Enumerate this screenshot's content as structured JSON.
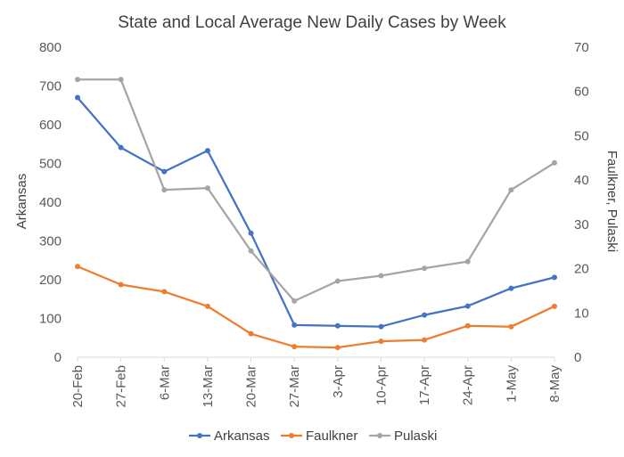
{
  "chart_data": {
    "type": "line",
    "title": "State and Local Average New Daily Cases by Week",
    "categories": [
      "20-Feb",
      "27-Feb",
      "6-Mar",
      "13-Mar",
      "20-Mar",
      "27-Mar",
      "3-Apr",
      "10-Apr",
      "17-Apr",
      "24-Apr",
      "1-May",
      "8-May"
    ],
    "y_left": {
      "label": "Arkansas",
      "range": [
        0,
        800
      ],
      "ticks": [
        "0",
        "100",
        "200",
        "300",
        "400",
        "500",
        "600",
        "700",
        "800"
      ]
    },
    "y_right": {
      "label": "Faulkner, Pulaski",
      "range": [
        0,
        70
      ],
      "ticks": [
        "0",
        "10",
        "20",
        "30",
        "40",
        "50",
        "60",
        "70"
      ]
    },
    "series": [
      {
        "name": "Arkansas",
        "axis": "left",
        "color": "#4472c4",
        "values": [
          670,
          541,
          479,
          533,
          320,
          83,
          81,
          79,
          109,
          132,
          178,
          206
        ]
      },
      {
        "name": "Faulkner",
        "axis": "right",
        "color": "#ed7d31",
        "values": [
          20.5,
          16.4,
          14.8,
          11.5,
          5.3,
          2.4,
          2.2,
          3.6,
          3.9,
          7.1,
          6.9,
          11.5
        ]
      },
      {
        "name": "Pulaski",
        "axis": "right",
        "color": "#a5a5a5",
        "values": [
          62.7,
          62.7,
          37.8,
          38.2,
          24.0,
          12.7,
          17.2,
          18.4,
          20.1,
          21.6,
          37.8,
          43.9
        ]
      }
    ],
    "grid": false,
    "legend": "bottom"
  }
}
